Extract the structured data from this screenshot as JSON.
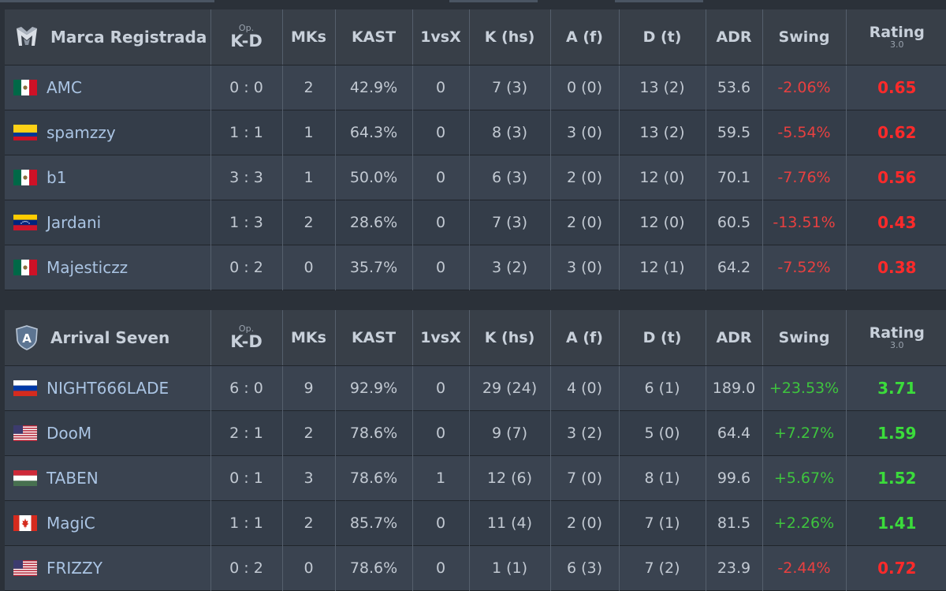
{
  "columns": {
    "op_sub": "Op.",
    "op_main": "K-D",
    "mks": "MKs",
    "kast": "KAST",
    "clutch": "1vsX",
    "k": "K (hs)",
    "a": "A (f)",
    "d": "D (t)",
    "adr": "ADR",
    "swing": "Swing",
    "rating_main": "Rating",
    "rating_sub": "3.0"
  },
  "colors": {
    "negative": "#e84040",
    "positive": "#3ec43e",
    "player_link": "#aac4e3"
  },
  "teams": [
    {
      "name": "Marca Registrada",
      "logo_icon": "marca-registrada-logo-icon",
      "players": [
        {
          "name": "AMC",
          "flag": "mexico-flag-icon",
          "opkd": "0 : 0",
          "mks": "2",
          "kast": "42.9%",
          "clutch": "0",
          "k": "7 (3)",
          "a": "0 (0)",
          "d": "13 (2)",
          "adr": "53.6",
          "swing": "-2.06%",
          "rating": "0.65"
        },
        {
          "name": "spamzzy",
          "flag": "colombia-flag-icon",
          "opkd": "1 : 1",
          "mks": "1",
          "kast": "64.3%",
          "clutch": "0",
          "k": "8 (3)",
          "a": "3 (0)",
          "d": "13 (2)",
          "adr": "59.5",
          "swing": "-5.54%",
          "rating": "0.62"
        },
        {
          "name": "b1",
          "flag": "mexico-flag-icon",
          "opkd": "3 : 3",
          "mks": "1",
          "kast": "50.0%",
          "clutch": "0",
          "k": "6 (3)",
          "a": "2 (0)",
          "d": "12 (0)",
          "adr": "70.1",
          "swing": "-7.76%",
          "rating": "0.56"
        },
        {
          "name": "Jardani",
          "flag": "venezuela-flag-icon",
          "opkd": "1 : 3",
          "mks": "2",
          "kast": "28.6%",
          "clutch": "0",
          "k": "7 (3)",
          "a": "2 (0)",
          "d": "12 (0)",
          "adr": "60.5",
          "swing": "-13.51%",
          "rating": "0.43"
        },
        {
          "name": "Majesticzz",
          "flag": "mexico-flag-icon",
          "opkd": "0 : 2",
          "mks": "0",
          "kast": "35.7%",
          "clutch": "0",
          "k": "3 (2)",
          "a": "3 (0)",
          "d": "12 (1)",
          "adr": "64.2",
          "swing": "-7.52%",
          "rating": "0.38"
        }
      ]
    },
    {
      "name": "Arrival Seven",
      "logo_icon": "arrival-seven-shield-logo-icon",
      "logo_letter": "A",
      "players": [
        {
          "name": "NIGHT666LADE",
          "flag": "russia-flag-icon",
          "opkd": "6 : 0",
          "mks": "9",
          "kast": "92.9%",
          "clutch": "0",
          "k": "29 (24)",
          "a": "4 (0)",
          "d": "6 (1)",
          "adr": "189.0",
          "swing": "+23.53%",
          "rating": "3.71"
        },
        {
          "name": "DooM",
          "flag": "usa-flag-icon",
          "opkd": "2 : 1",
          "mks": "2",
          "kast": "78.6%",
          "clutch": "0",
          "k": "9 (7)",
          "a": "3 (2)",
          "d": "5 (0)",
          "adr": "64.4",
          "swing": "+7.27%",
          "rating": "1.59"
        },
        {
          "name": "TABEN",
          "flag": "hungary-flag-icon",
          "opkd": "0 : 1",
          "mks": "3",
          "kast": "78.6%",
          "clutch": "1",
          "k": "12 (6)",
          "a": "7 (0)",
          "d": "8 (1)",
          "adr": "99.6",
          "swing": "+5.67%",
          "rating": "1.52"
        },
        {
          "name": "MagiC",
          "flag": "canada-flag-icon",
          "opkd": "1 : 1",
          "mks": "2",
          "kast": "85.7%",
          "clutch": "0",
          "k": "11 (4)",
          "a": "2 (0)",
          "d": "7 (1)",
          "adr": "81.5",
          "swing": "+2.26%",
          "rating": "1.41"
        },
        {
          "name": "FRIZZY",
          "flag": "usa-flag-icon",
          "opkd": "0 : 2",
          "mks": "0",
          "kast": "78.6%",
          "clutch": "0",
          "k": "1 (1)",
          "a": "6 (3)",
          "d": "7 (2)",
          "adr": "23.9",
          "swing": "-2.44%",
          "rating": "0.72"
        }
      ]
    }
  ]
}
